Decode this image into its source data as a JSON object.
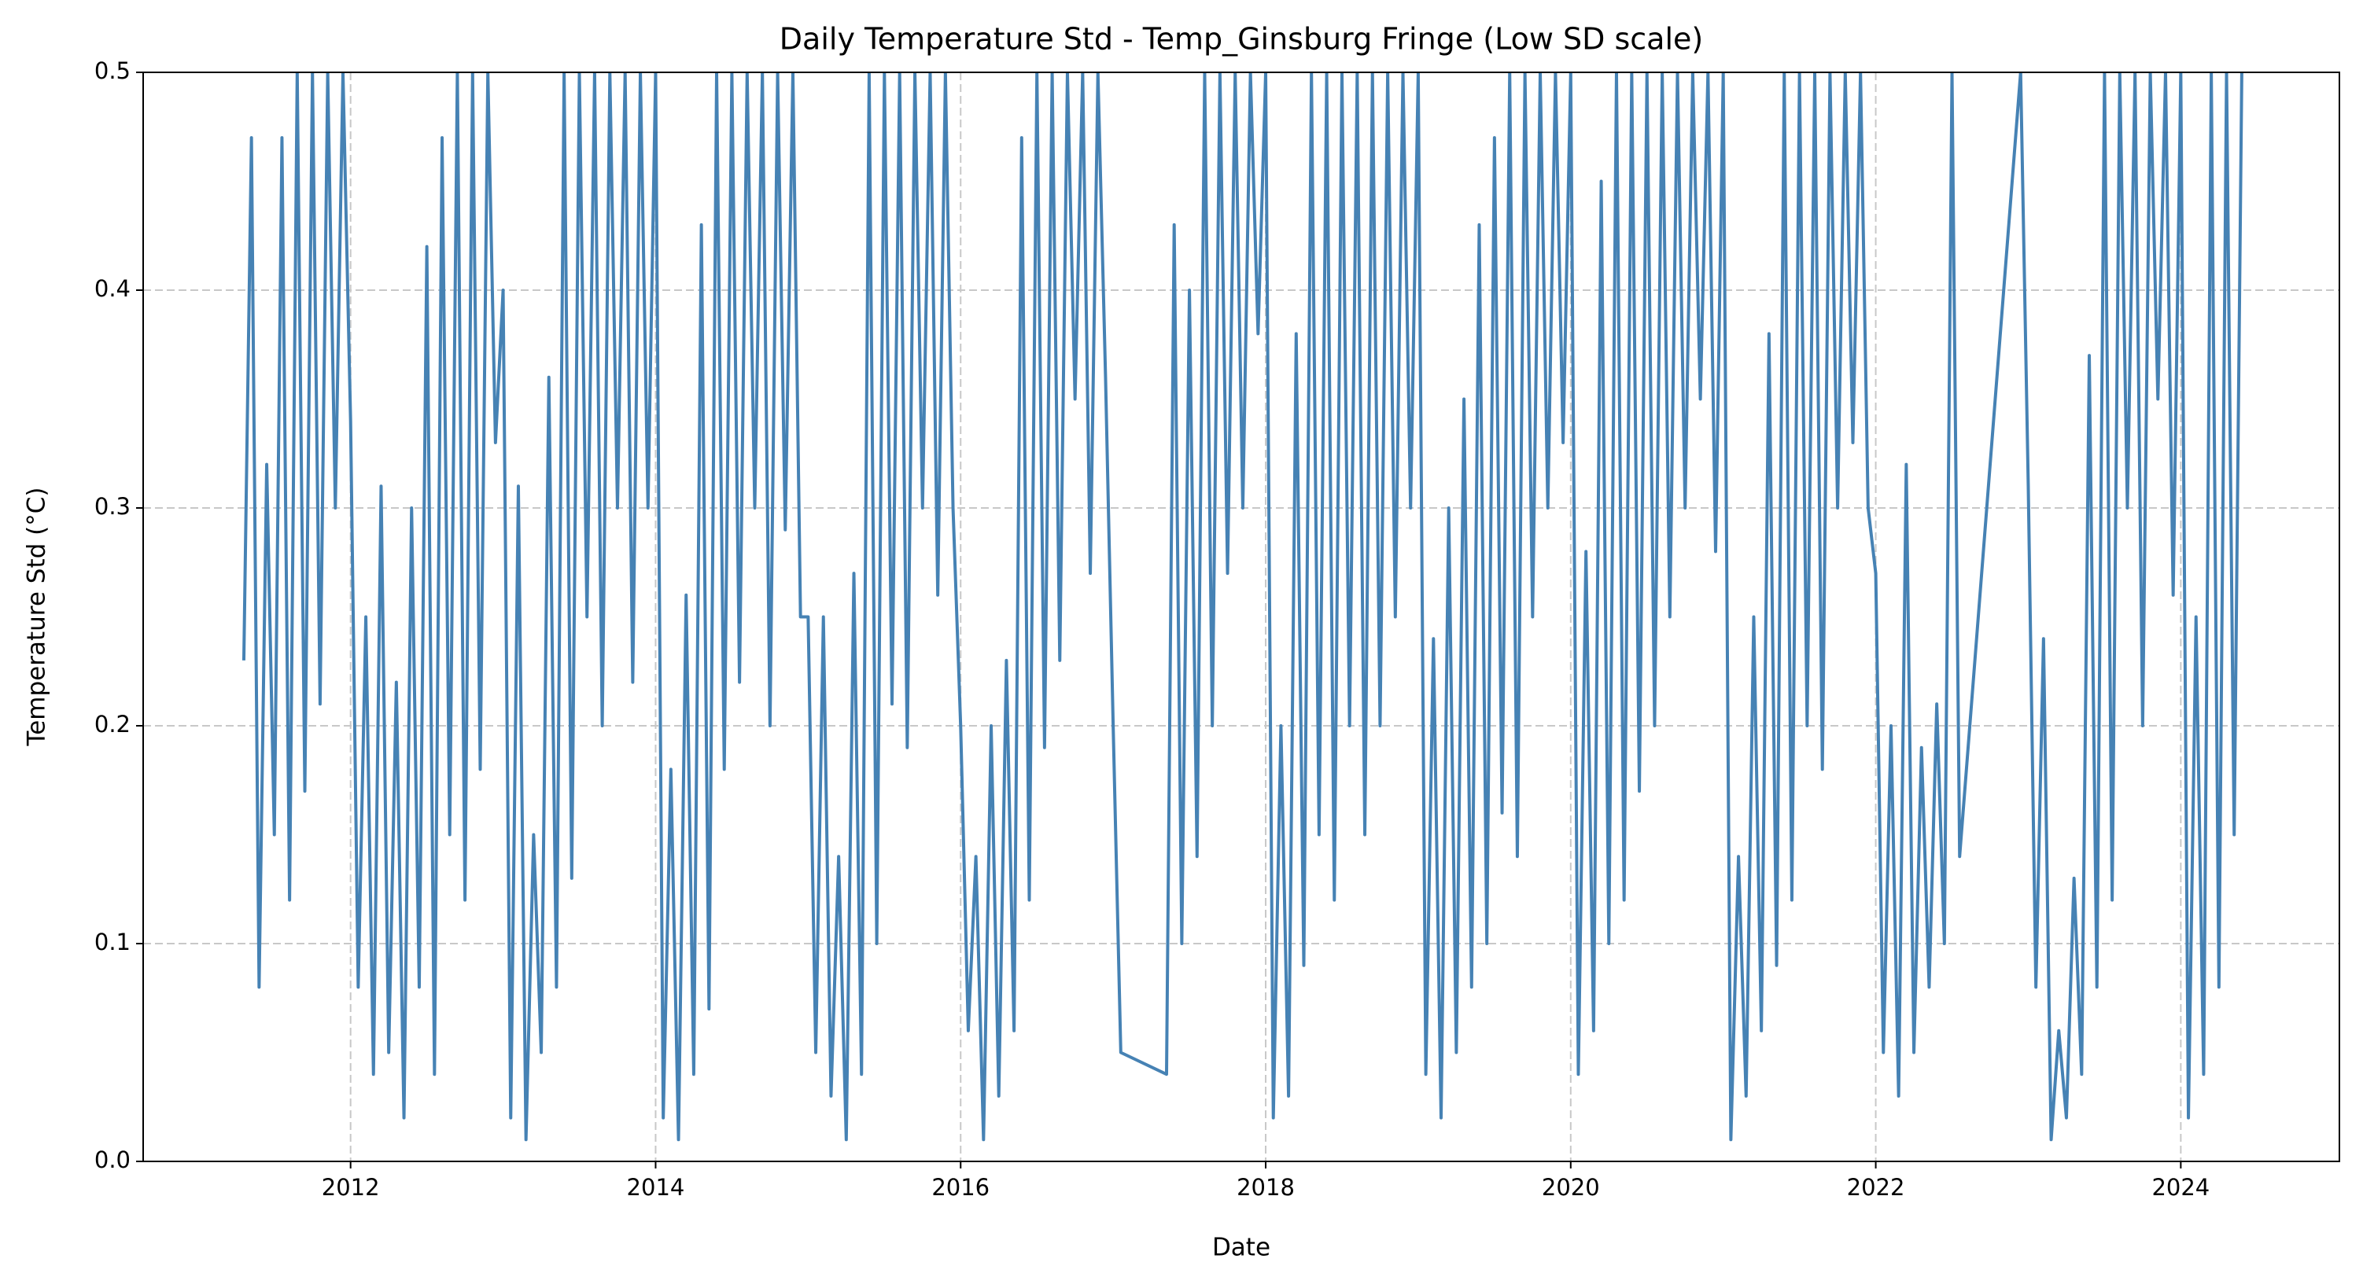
{
  "chart_data": {
    "type": "line",
    "title": "Daily Temperature Std - Temp_Ginsburg Fringe (Low SD scale)",
    "x_label": "Date",
    "y_label": "Temperature Std (°C)",
    "color": "#4682b4",
    "grid": true,
    "xlim": [
      2010.64,
      2025.04
    ],
    "ylim": [
      0,
      0.5
    ],
    "xticks": [
      2012,
      2014,
      2016,
      2018,
      2020,
      2022,
      2024
    ],
    "yticks": [
      {
        "value": 0,
        "label": "0.0"
      },
      0.1,
      0.2,
      0.3,
      0.4,
      0.5
    ],
    "x": [
      2011.3,
      2011.35,
      2011.4,
      2011.45,
      2011.5,
      2011.55,
      2011.6,
      2011.65,
      2011.7,
      2011.75,
      2011.8,
      2011.85,
      2011.9,
      2011.95,
      2012.0,
      2012.05,
      2012.1,
      2012.15,
      2012.2,
      2012.25,
      2012.3,
      2012.35,
      2012.4,
      2012.45,
      2012.5,
      2012.55,
      2012.6,
      2012.65,
      2012.7,
      2012.75,
      2012.8,
      2012.85,
      2012.9,
      2012.95,
      2013.0,
      2013.05,
      2013.1,
      2013.15,
      2013.2,
      2013.25,
      2013.3,
      2013.35,
      2013.4,
      2013.45,
      2013.5,
      2013.55,
      2013.6,
      2013.65,
      2013.7,
      2013.75,
      2013.8,
      2013.85,
      2013.9,
      2013.95,
      2014.0,
      2014.05,
      2014.1,
      2014.15,
      2014.2,
      2014.25,
      2014.3,
      2014.35,
      2014.4,
      2014.45,
      2014.5,
      2014.55,
      2014.6,
      2014.65,
      2014.7,
      2014.75,
      2014.8,
      2014.85,
      2014.9,
      2014.95,
      2015.0,
      2015.05,
      2015.1,
      2015.15,
      2015.2,
      2015.25,
      2015.3,
      2015.35,
      2015.4,
      2015.45,
      2015.5,
      2015.55,
      2015.6,
      2015.65,
      2015.7,
      2015.75,
      2015.8,
      2015.85,
      2015.9,
      2015.95,
      2016.0,
      2016.05,
      2016.1,
      2016.15,
      2016.2,
      2016.25,
      2016.3,
      2016.35,
      2016.4,
      2016.45,
      2016.5,
      2016.55,
      2016.6,
      2016.65,
      2016.7,
      2016.75,
      2016.8,
      2016.85,
      2016.9,
      2016.95,
      2017.0,
      2017.05,
      2017.35,
      2017.4,
      2017.45,
      2017.5,
      2017.55,
      2017.6,
      2017.65,
      2017.7,
      2017.75,
      2017.8,
      2017.85,
      2017.9,
      2017.95,
      2018.0,
      2018.05,
      2018.1,
      2018.15,
      2018.2,
      2018.25,
      2018.3,
      2018.35,
      2018.4,
      2018.45,
      2018.5,
      2018.55,
      2018.6,
      2018.65,
      2018.7,
      2018.75,
      2018.8,
      2018.85,
      2018.9,
      2018.95,
      2019.0,
      2019.05,
      2019.1,
      2019.15,
      2019.2,
      2019.25,
      2019.3,
      2019.35,
      2019.4,
      2019.45,
      2019.5,
      2019.55,
      2019.6,
      2019.65,
      2019.7,
      2019.75,
      2019.8,
      2019.85,
      2019.9,
      2019.95,
      2020.0,
      2020.05,
      2020.1,
      2020.15,
      2020.2,
      2020.25,
      2020.3,
      2020.35,
      2020.4,
      2020.45,
      2020.5,
      2020.55,
      2020.6,
      2020.65,
      2020.7,
      2020.75,
      2020.8,
      2020.85,
      2020.9,
      2020.95,
      2021.0,
      2021.05,
      2021.1,
      2021.15,
      2021.2,
      2021.25,
      2021.3,
      2021.35,
      2021.4,
      2021.45,
      2021.5,
      2021.55,
      2021.6,
      2021.65,
      2021.7,
      2021.75,
      2021.8,
      2021.85,
      2021.9,
      2021.95,
      2022.0,
      2022.05,
      2022.1,
      2022.15,
      2022.2,
      2022.25,
      2022.3,
      2022.35,
      2022.4,
      2022.45,
      2022.5,
      2022.55,
      2022.95,
      2023.0,
      2023.05,
      2023.1,
      2023.15,
      2023.2,
      2023.25,
      2023.3,
      2023.35,
      2023.4,
      2023.45,
      2023.5,
      2023.55,
      2023.6,
      2023.65,
      2023.7,
      2023.75,
      2023.8,
      2023.85,
      2023.9,
      2023.95,
      2024.0,
      2024.05,
      2024.1,
      2024.15,
      2024.2,
      2024.25,
      2024.3,
      2024.35,
      2024.4
    ],
    "values": [
      0.23,
      0.47,
      0.08,
      0.32,
      0.15,
      0.47,
      0.12,
      0.5,
      0.17,
      0.5,
      0.21,
      0.5,
      0.3,
      0.5,
      0.34,
      0.08,
      0.25,
      0.04,
      0.31,
      0.05,
      0.22,
      0.02,
      0.3,
      0.08,
      0.42,
      0.04,
      0.47,
      0.15,
      0.5,
      0.12,
      0.5,
      0.18,
      0.5,
      0.33,
      0.4,
      0.02,
      0.31,
      0.01,
      0.15,
      0.05,
      0.36,
      0.08,
      0.5,
      0.13,
      0.5,
      0.25,
      0.5,
      0.2,
      0.5,
      0.3,
      0.5,
      0.22,
      0.5,
      0.3,
      0.5,
      0.02,
      0.18,
      0.01,
      0.26,
      0.04,
      0.43,
      0.07,
      0.5,
      0.18,
      0.5,
      0.22,
      0.5,
      0.3,
      0.5,
      0.2,
      0.5,
      0.29,
      0.5,
      0.25,
      0.25,
      0.05,
      0.25,
      0.03,
      0.14,
      0.01,
      0.27,
      0.04,
      0.5,
      0.1,
      0.5,
      0.21,
      0.5,
      0.19,
      0.5,
      0.3,
      0.5,
      0.26,
      0.5,
      0.3,
      0.2,
      0.06,
      0.14,
      0.01,
      0.2,
      0.03,
      0.23,
      0.06,
      0.47,
      0.12,
      0.5,
      0.19,
      0.5,
      0.23,
      0.5,
      0.35,
      0.5,
      0.27,
      0.5,
      0.36,
      0.2,
      0.05,
      0.04,
      0.43,
      0.1,
      0.4,
      0.14,
      0.5,
      0.2,
      0.5,
      0.27,
      0.5,
      0.3,
      0.5,
      0.38,
      0.5,
      0.02,
      0.2,
      0.03,
      0.38,
      0.09,
      0.5,
      0.15,
      0.5,
      0.12,
      0.5,
      0.2,
      0.5,
      0.15,
      0.5,
      0.2,
      0.5,
      0.25,
      0.5,
      0.3,
      0.5,
      0.04,
      0.24,
      0.02,
      0.3,
      0.05,
      0.35,
      0.08,
      0.43,
      0.1,
      0.47,
      0.16,
      0.5,
      0.14,
      0.5,
      0.25,
      0.5,
      0.3,
      0.5,
      0.33,
      0.5,
      0.04,
      0.28,
      0.06,
      0.45,
      0.1,
      0.5,
      0.12,
      0.5,
      0.17,
      0.5,
      0.2,
      0.5,
      0.25,
      0.5,
      0.3,
      0.5,
      0.35,
      0.5,
      0.28,
      0.5,
      0.01,
      0.14,
      0.03,
      0.25,
      0.06,
      0.38,
      0.09,
      0.5,
      0.12,
      0.5,
      0.2,
      0.5,
      0.18,
      0.5,
      0.3,
      0.5,
      0.33,
      0.5,
      0.3,
      0.27,
      0.05,
      0.2,
      0.03,
      0.32,
      0.05,
      0.19,
      0.08,
      0.21,
      0.1,
      0.5,
      0.14,
      0.5,
      0.31,
      0.08,
      0.24,
      0.01,
      0.06,
      0.02,
      0.13,
      0.04,
      0.37,
      0.08,
      0.5,
      0.12,
      0.5,
      0.3,
      0.5,
      0.2,
      0.5,
      0.35,
      0.5,
      0.26,
      0.5,
      0.02,
      0.25,
      0.04,
      0.5,
      0.08,
      0.5,
      0.15,
      0.5
    ]
  }
}
